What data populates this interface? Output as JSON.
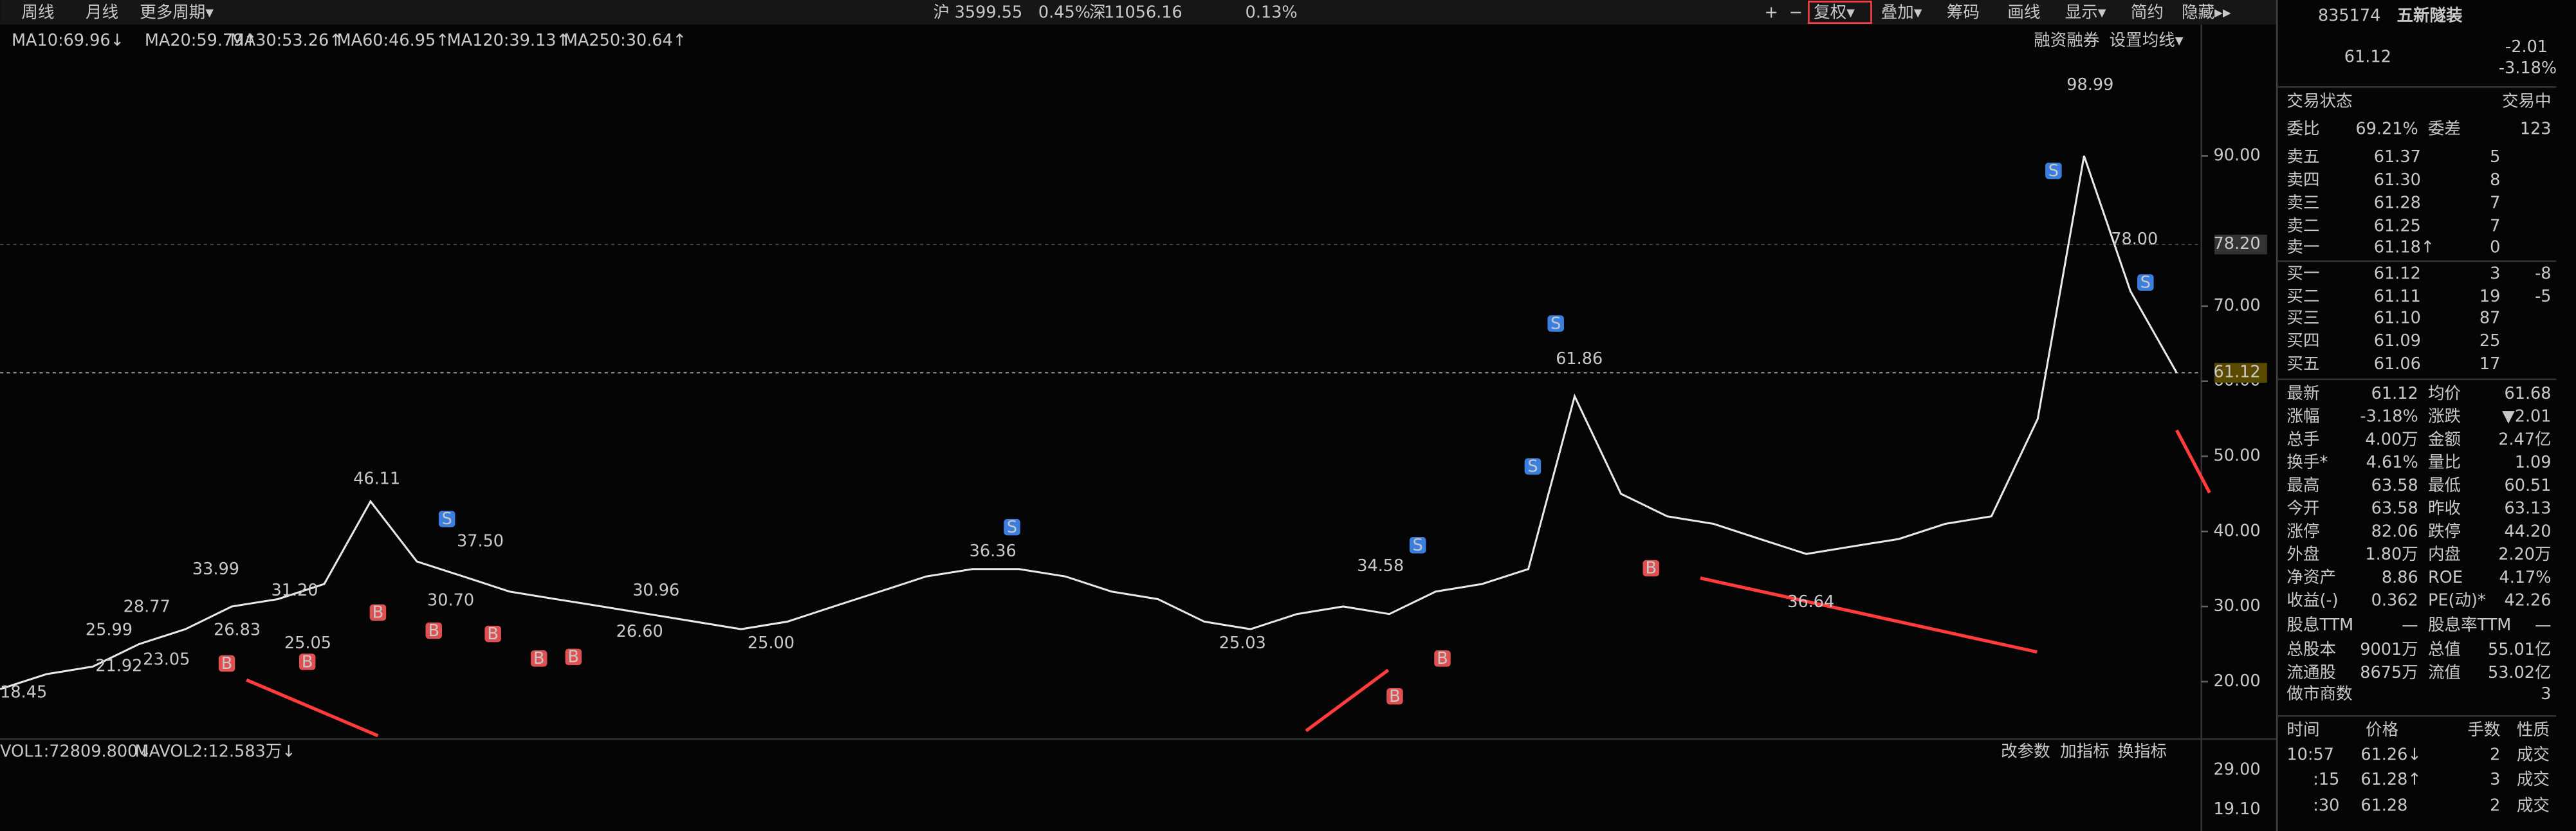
{
  "toolbar": {
    "periods": [
      "周线",
      "月线",
      "更多周期▾"
    ],
    "indexes": [
      {
        "name": "沪",
        "value": "3599.55",
        "change": "0.45%"
      },
      {
        "name": "深",
        "value": "11056.16",
        "change": "0.13%"
      }
    ],
    "buttons": [
      "+",
      "−",
      "复权▾",
      "叠加▾",
      "筹码",
      "画线",
      "显示▾",
      "简约",
      "隐藏▸▸"
    ]
  },
  "ma_legend": [
    "MA10:69.96↓",
    "MA20:59.79↑",
    "MA30:53.26↑",
    "MA60:46.95↑",
    "MA120:39.13↑",
    "MA250:30.64↑"
  ],
  "chart_links": [
    "融资融券",
    "设置均线▾"
  ],
  "chart_data": {
    "type": "line",
    "x": [
      0,
      1,
      2,
      3,
      4,
      5,
      6,
      7,
      8,
      9,
      10,
      11,
      12,
      13,
      14,
      15,
      16,
      17,
      18,
      19,
      20,
      21,
      22,
      23,
      24,
      25,
      26,
      27,
      28,
      29,
      30,
      31,
      32,
      33,
      34,
      35,
      36,
      37,
      38,
      39,
      40,
      41,
      42,
      43,
      44,
      45,
      46,
      47
    ],
    "series": [
      {
        "color": "#e8e8e8",
        "values": [
          19,
          21,
          22,
          25,
          27,
          30,
          31,
          33,
          44,
          36,
          34,
          32,
          31,
          30,
          29,
          28,
          27,
          28,
          30,
          32,
          34,
          35,
          35,
          34,
          32,
          31,
          28,
          27,
          29,
          30,
          29,
          32,
          33,
          35,
          58,
          45,
          42,
          41,
          39,
          37,
          38,
          39,
          41,
          42,
          55,
          90,
          72,
          61.12
        ]
      }
    ],
    "xlim": [
      0,
      47
    ],
    "ylim": [
      12.8,
      103.1
    ],
    "yticks": [
      {
        "value": 90,
        "label": "90.00"
      },
      {
        "value": 70,
        "label": "70.00"
      },
      {
        "value": 60,
        "label": "60.00"
      },
      {
        "value": 50,
        "label": "50.00"
      },
      {
        "value": 40,
        "label": "40.00"
      },
      {
        "value": 30,
        "label": "30.00"
      },
      {
        "value": 20,
        "label": "20.00"
      }
    ],
    "price_marks": [
      {
        "value": 78.2,
        "label": "78.20"
      },
      {
        "value": 61.12,
        "label": "61.12"
      }
    ],
    "annotations": [
      "98.99",
      "78.00",
      "61.86",
      "46.11",
      "37.50",
      "36.36",
      "34.58",
      "33.99",
      "31.20",
      "30.96",
      "30.70",
      "28.77",
      "26.83",
      "26.60",
      "25.99",
      "25.05",
      "25.00",
      "25.03",
      "23.05",
      "21.92",
      "18.45",
      "36.64"
    ],
    "signals": [
      "B",
      "B",
      "B",
      "B",
      "B",
      "B",
      "B",
      "B",
      "B",
      "B",
      "S",
      "S",
      "S",
      "S",
      "S",
      "S",
      "S"
    ]
  },
  "volume_panel": {
    "labels": [
      "VOL1:72809.800↓",
      "MAVOL2:12.583万↓"
    ],
    "buttons": [
      "改参数",
      "加指标",
      "换指标"
    ],
    "yticks": [
      "29.00",
      "19.10"
    ]
  },
  "quote": {
    "code": "835174",
    "name": "五新隧装",
    "price": "61.12",
    "change": "-2.01",
    "change_pct": "-3.18%",
    "status_label": "交易状态",
    "status": "交易中",
    "ratio_label": "委比",
    "ratio": "69.21%",
    "diff_label": "委差",
    "diff": "123",
    "asks": [
      {
        "label": "卖五",
        "price": "61.37",
        "volume": "5"
      },
      {
        "label": "卖四",
        "price": "61.30",
        "volume": "8"
      },
      {
        "label": "卖三",
        "price": "61.28",
        "volume": "7"
      },
      {
        "label": "卖二",
        "price": "61.25",
        "volume": "7"
      },
      {
        "label": "卖一",
        "price": "61.18↑",
        "volume": "0"
      }
    ],
    "bids": [
      {
        "label": "买一",
        "price": "61.12",
        "volume": "3",
        "change": "-8"
      },
      {
        "label": "买二",
        "price": "61.11",
        "volume": "19",
        "change": "-5"
      },
      {
        "label": "买三",
        "price": "61.10",
        "volume": "87"
      },
      {
        "label": "买四",
        "price": "61.09",
        "volume": "25"
      },
      {
        "label": "买五",
        "price": "61.06",
        "volume": "17"
      }
    ],
    "stats": [
      [
        "最新",
        "61.12",
        "均价",
        "61.68"
      ],
      [
        "涨幅",
        "-3.18%",
        "涨跌",
        "▼2.01"
      ],
      [
        "总手",
        "4.00万",
        "金额",
        "2.47亿"
      ],
      [
        "换手*",
        "4.61%",
        "量比",
        "1.09"
      ],
      [
        "最高",
        "63.58",
        "最低",
        "60.51"
      ],
      [
        "今开",
        "63.58",
        "昨收",
        "63.13"
      ],
      [
        "涨停",
        "82.06",
        "跌停",
        "44.20"
      ],
      [
        "外盘",
        "1.80万",
        "内盘",
        "2.20万"
      ],
      [
        "净资产",
        "8.86",
        "ROE",
        "4.17%"
      ],
      [
        "收益(-)",
        "0.362",
        "PE(动)*",
        "42.26"
      ],
      [
        "股息TTM",
        "—",
        "股息率TTM",
        "—"
      ],
      [
        "总股本",
        "9001万",
        "总值",
        "55.01亿"
      ],
      [
        "流通股",
        "8675万",
        "流值",
        "53.02亿"
      ],
      [
        "做市商数",
        "3"
      ]
    ],
    "trades_header": [
      "时间",
      "价格",
      "手数",
      "性质"
    ],
    "trades": [
      [
        "10:57",
        "61.26↓",
        "2",
        "成交"
      ],
      [
        ":15",
        "61.28↑",
        "3",
        "成交"
      ],
      [
        ":30",
        "61.28",
        "2",
        "成交"
      ]
    ]
  }
}
